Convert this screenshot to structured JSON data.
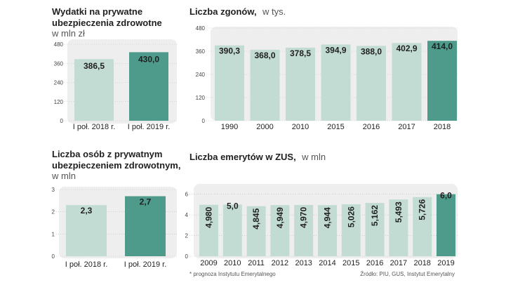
{
  "colors": {
    "panel": "#eeeeee",
    "bar": "#c3dcd3",
    "highlight": "#4e9b8c",
    "grid": "#bbbbbb"
  },
  "footer": {
    "note": "* prognoza Instytutu Emerytalnego",
    "source": "Źródło: PIU, GUS,  Instytut Emerytalny"
  },
  "chart_data": [
    {
      "id": "c1",
      "type": "bar",
      "title": [
        "Wydatki na prywatne",
        "ubezpieczenia zdrowotne"
      ],
      "subtitle": "w mln zł",
      "categories": [
        "I poł. 2018 r.",
        "I poł. 2019 r."
      ],
      "values": [
        386.5,
        430.0
      ],
      "labels": [
        "386,5",
        "430,0"
      ],
      "highlight": [
        1
      ],
      "yticks": [
        0,
        120,
        240,
        360,
        480
      ],
      "ylim": [
        0,
        480
      ]
    },
    {
      "id": "c2",
      "type": "bar",
      "title": [
        "Liczba zgonów,"
      ],
      "title_suffix": "w tys.",
      "categories": [
        "1990",
        "2000",
        "2010",
        "2015",
        "2016",
        "2017",
        "2018"
      ],
      "values": [
        390.3,
        368.0,
        378.5,
        394.9,
        388.0,
        402.9,
        414.0
      ],
      "labels": [
        "390,3",
        "368,0",
        "378,5",
        "394,9",
        "388,0",
        "402,9",
        "414,0"
      ],
      "highlight": [
        6
      ],
      "yticks": [
        0,
        120,
        240,
        360,
        480
      ],
      "ylim": [
        0,
        480
      ]
    },
    {
      "id": "c3",
      "type": "bar",
      "title": [
        "Liczba osób z prywatnym",
        "ubezpieczeniem zdrowotnym,"
      ],
      "subtitle": "w mln",
      "categories": [
        "I poł. 2018 r.",
        "I poł. 2019 r."
      ],
      "values": [
        2.3,
        2.7
      ],
      "labels": [
        "2,3",
        "2,7"
      ],
      "highlight": [
        1
      ],
      "yticks": [
        0,
        1,
        2,
        3
      ],
      "ylim": [
        0,
        3
      ]
    },
    {
      "id": "c4",
      "type": "bar",
      "title": [
        "Liczba emerytów w ZUS,"
      ],
      "title_suffix": "w mln",
      "categories": [
        "2009",
        "2010",
        "2011",
        "2012",
        "2013",
        "2014",
        "2015",
        "2016",
        "2017",
        "2018",
        "2019"
      ],
      "values": [
        4.98,
        5.0,
        4.845,
        4.949,
        4.97,
        4.944,
        5.026,
        5.162,
        5.493,
        5.726,
        6.0
      ],
      "labels": [
        "4,980",
        "5,0",
        "4,845",
        "4,949",
        "4,970",
        "4,944",
        "5,026",
        "5,162",
        "5,493",
        "5,726",
        "6,0"
      ],
      "highlight": [
        10
      ],
      "label_rotate": true,
      "yticks": [
        0,
        2,
        4,
        6
      ],
      "ylim": [
        0,
        7
      ]
    }
  ]
}
